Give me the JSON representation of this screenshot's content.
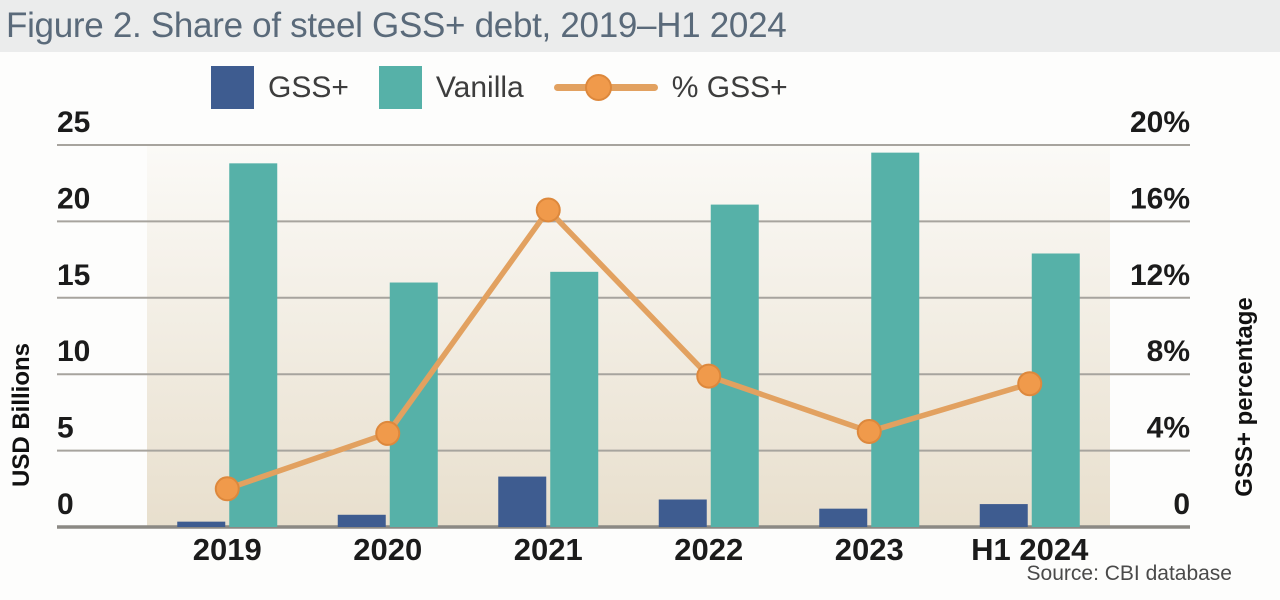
{
  "figure": {
    "title": "Figure 2. Share of steel GSS+ debt, 2019–H1 2024",
    "source": "Source: CBI database"
  },
  "chart_data": {
    "type": "grouped-bar+line",
    "title": "Figure 2. Share of steel GSS+ debt, 2019–H1 2024",
    "categories": [
      "2019",
      "2020",
      "2021",
      "2022",
      "2023",
      "H1 2024"
    ],
    "series": [
      {
        "name": "GSS+",
        "type": "bar",
        "axis": "left",
        "color_key": "gss",
        "values": [
          0.35,
          0.8,
          3.3,
          1.8,
          1.2,
          1.5
        ]
      },
      {
        "name": "Vanilla",
        "type": "bar",
        "axis": "left",
        "color_key": "vanilla",
        "values": [
          23.8,
          16.0,
          16.7,
          21.1,
          24.5,
          17.9
        ]
      },
      {
        "name": "% GSS+",
        "type": "line",
        "axis": "right",
        "color_key": "pct",
        "values": [
          2.0,
          4.9,
          16.6,
          7.9,
          5.0,
          7.5
        ]
      }
    ],
    "left_axis": {
      "title": "USD Billions",
      "min": 0,
      "max": 25,
      "ticks": [
        {
          "value": 25,
          "label": "25"
        },
        {
          "value": 20,
          "label": "20"
        },
        {
          "value": 15,
          "label": "15"
        },
        {
          "value": 10,
          "label": "10"
        },
        {
          "value": 5,
          "label": "5"
        },
        {
          "value": 0,
          "label": "0"
        }
      ]
    },
    "right_axis": {
      "title": "GSS+ percentage",
      "min": 0,
      "max": 20,
      "ticks": [
        {
          "value": 20,
          "label": "20%"
        },
        {
          "value": 16,
          "label": "16%"
        },
        {
          "value": 12,
          "label": "12%"
        },
        {
          "value": 8,
          "label": "8%"
        },
        {
          "value": 4,
          "label": "4%"
        },
        {
          "value": 0,
          "label": "0"
        }
      ]
    },
    "grid": true,
    "legend_position": "top",
    "colors": {
      "gss": "#3e5c90",
      "vanilla": "#56b1a8",
      "pct": "#f09a4b",
      "pct_line": "#e2a160",
      "pct_stroke": "#dd883c",
      "grid": "#a7a49e",
      "baseline": "#8b8984",
      "tick_text": "#1b1b1b",
      "legend_text": "#3d3d3d",
      "source_text": "#4a4a4a",
      "title": "#5a6a7a",
      "title_band": "#ebecec",
      "plot_top": "#fbfaf7",
      "plot_bottom": "#e8dfcd"
    }
  }
}
